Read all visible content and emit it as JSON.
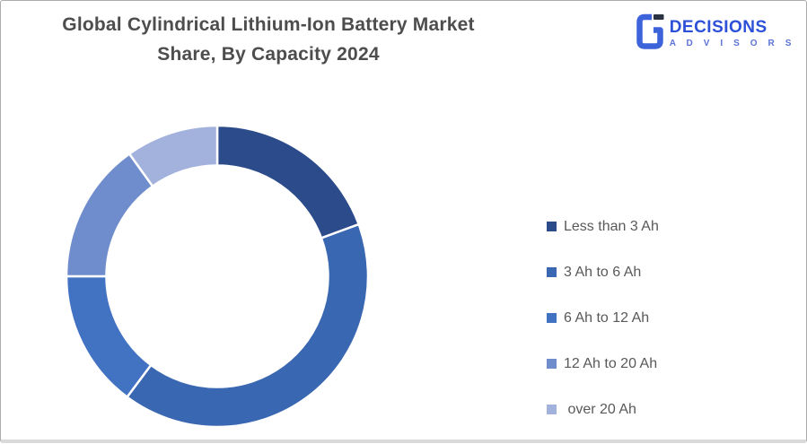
{
  "title": {
    "line1": "Global Cylindrical Lithium-Ion Battery Market",
    "line2": "Share, By Capacity 2024"
  },
  "logo": {
    "wordmark": "DECISIONS",
    "subtitle": "A D V I S O R S",
    "wordmark_color": "#2d50d8",
    "subtitle_color": "#5b73d6",
    "icon_blue": "#3c63da",
    "icon_dark": "#2a333f"
  },
  "chart_data": {
    "type": "pie",
    "subtype": "donut",
    "title": "Global Cylindrical Lithium-Ion Battery Market Share, By Capacity 2024",
    "categories": [
      "Less than 3 Ah",
      "3 Ah to 6 Ah",
      "6 Ah to 12 Ah",
      "12 Ah to 20 Ah",
      "over 20 Ah"
    ],
    "values": [
      19.4,
      40.8,
      14.8,
      15.1,
      9.9
    ],
    "colors": [
      "#2c4b8a",
      "#3a67b1",
      "#4272c2",
      "#6f8dcc",
      "#a3b1dd"
    ],
    "legend_position": "right",
    "start_angle_deg": 0,
    "direction": "clockwise"
  },
  "legend": {
    "items": [
      {
        "label": "Less than 3 Ah"
      },
      {
        "label": "3 Ah to 6 Ah"
      },
      {
        "label": "6 Ah to 12 Ah"
      },
      {
        "label": "12 Ah to 20 Ah"
      },
      {
        "label": " over 20 Ah"
      }
    ]
  }
}
